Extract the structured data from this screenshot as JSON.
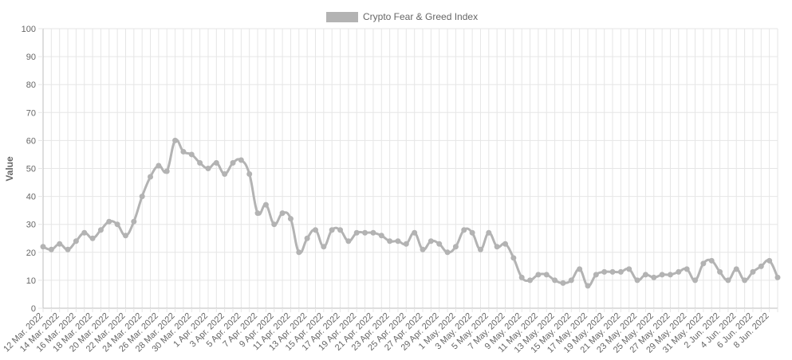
{
  "chart_data": {
    "type": "line",
    "title": "",
    "xlabel": "",
    "ylabel": "Value",
    "ylim": [
      0,
      100
    ],
    "yticks": [
      0,
      10,
      20,
      30,
      40,
      50,
      60,
      70,
      80,
      90,
      100
    ],
    "grid": true,
    "legend_position": "top-center",
    "colors": {
      "series": "#b3b3b3",
      "grid": "#e6e6e6",
      "axis": "#bdbdbd",
      "text": "#666666"
    },
    "x_tick_labels": [
      "12 Mar. 2022",
      "14 Mar. 2022",
      "16 Mar. 2022",
      "18 Mar. 2022",
      "20 Mar. 2022",
      "22 Mar. 2022",
      "24 Mar. 2022",
      "26 Mar. 2022",
      "28 Mar. 2022",
      "30 Mar. 2022",
      "1 Apr. 2022",
      "3 Apr. 2022",
      "5 Apr. 2022",
      "7 Apr. 2022",
      "9 Apr. 2022",
      "11 Apr. 2022",
      "13 Apr. 2022",
      "15 Apr. 2022",
      "17 Apr. 2022",
      "19 Apr. 2022",
      "21 Apr. 2022",
      "23 Apr. 2022",
      "25 Apr. 2022",
      "27 Apr. 2022",
      "29 Apr. 2022",
      "1 May. 2022",
      "3 May. 2022",
      "5 May. 2022",
      "7 May. 2022",
      "9 May. 2022",
      "11 May. 2022",
      "13 May. 2022",
      "15 May. 2022",
      "17 May. 2022",
      "19 May. 2022",
      "21 May. 2022",
      "23 May. 2022",
      "25 May. 2022",
      "27 May. 2022",
      "29 May. 2022",
      "31 May. 2022",
      "2 Jun. 2022",
      "4 Jun. 2022",
      "6 Jun. 2022",
      "8 Jun. 2022"
    ],
    "x": [
      "2022-03-12",
      "2022-03-13",
      "2022-03-14",
      "2022-03-15",
      "2022-03-16",
      "2022-03-17",
      "2022-03-18",
      "2022-03-19",
      "2022-03-20",
      "2022-03-21",
      "2022-03-22",
      "2022-03-23",
      "2022-03-24",
      "2022-03-25",
      "2022-03-26",
      "2022-03-27",
      "2022-03-28",
      "2022-03-29",
      "2022-03-30",
      "2022-03-31",
      "2022-04-01",
      "2022-04-02",
      "2022-04-03",
      "2022-04-04",
      "2022-04-05",
      "2022-04-06",
      "2022-04-07",
      "2022-04-08",
      "2022-04-09",
      "2022-04-10",
      "2022-04-11",
      "2022-04-12",
      "2022-04-13",
      "2022-04-14",
      "2022-04-15",
      "2022-04-16",
      "2022-04-17",
      "2022-04-18",
      "2022-04-19",
      "2022-04-20",
      "2022-04-21",
      "2022-04-22",
      "2022-04-23",
      "2022-04-24",
      "2022-04-25",
      "2022-04-26",
      "2022-04-27",
      "2022-04-28",
      "2022-04-29",
      "2022-04-30",
      "2022-05-01",
      "2022-05-02",
      "2022-05-03",
      "2022-05-04",
      "2022-05-05",
      "2022-05-06",
      "2022-05-07",
      "2022-05-08",
      "2022-05-09",
      "2022-05-10",
      "2022-05-11",
      "2022-05-12",
      "2022-05-13",
      "2022-05-14",
      "2022-05-15",
      "2022-05-16",
      "2022-05-17",
      "2022-05-18",
      "2022-05-19",
      "2022-05-20",
      "2022-05-21",
      "2022-05-22",
      "2022-05-23",
      "2022-05-24",
      "2022-05-25",
      "2022-05-26",
      "2022-05-27",
      "2022-05-28",
      "2022-05-29",
      "2022-05-30",
      "2022-05-31",
      "2022-06-01",
      "2022-06-02",
      "2022-06-03",
      "2022-06-04",
      "2022-06-05",
      "2022-06-06",
      "2022-06-07",
      "2022-06-08",
      "2022-06-09"
    ],
    "series": [
      {
        "name": "Crypto Fear & Greed Index",
        "values": [
          22,
          21,
          23,
          21,
          24,
          27,
          25,
          28,
          31,
          30,
          26,
          31,
          40,
          47,
          51,
          49,
          60,
          56,
          55,
          52,
          50,
          52,
          48,
          52,
          53,
          48,
          34,
          37,
          30,
          34,
          32,
          20,
          25,
          28,
          22,
          28,
          28,
          24,
          27,
          27,
          27,
          26,
          24,
          24,
          23,
          27,
          21,
          24,
          23,
          20,
          22,
          28,
          27,
          21,
          27,
          22,
          23,
          18,
          11,
          10,
          12,
          12,
          10,
          9,
          10,
          14,
          8,
          12,
          13,
          13,
          13,
          14,
          10,
          12,
          11,
          12,
          12,
          13,
          14,
          10,
          16,
          17,
          13,
          10,
          14,
          10,
          13,
          15,
          17,
          11
        ]
      }
    ]
  }
}
